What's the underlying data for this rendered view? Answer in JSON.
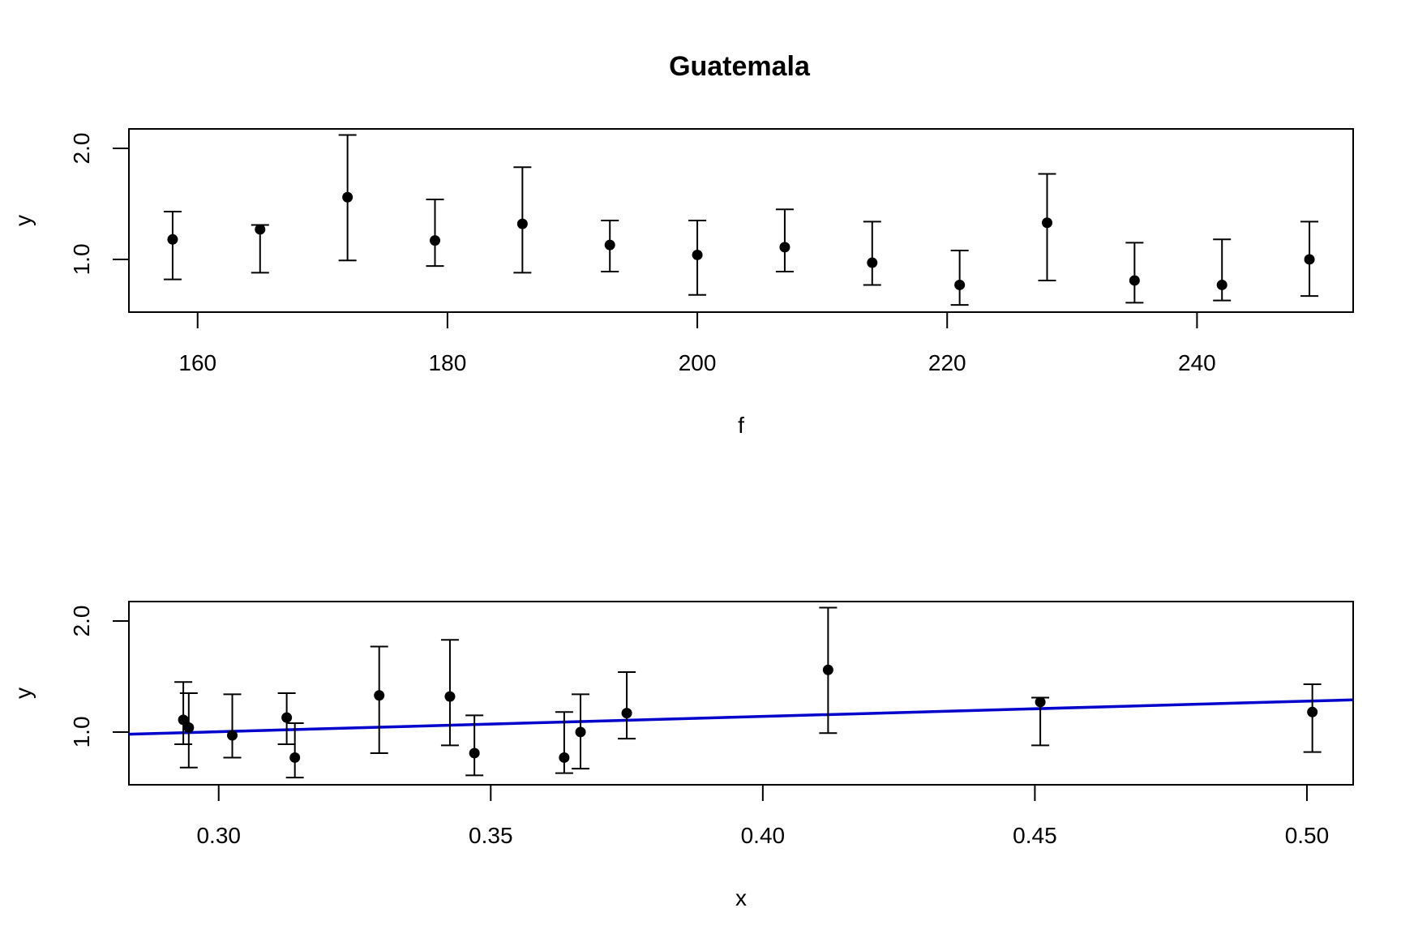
{
  "title": "Guatemala",
  "chart_data": [
    {
      "type": "scatter",
      "title": "Guatemala",
      "xlabel": "f",
      "ylabel": "y",
      "xlim": [
        154.5,
        252.5
      ],
      "ylim": [
        0.525,
        2.175
      ],
      "x_ticks": [
        160,
        180,
        200,
        220,
        240
      ],
      "x_tick_labels": [
        "160",
        "180",
        "200",
        "220",
        "240"
      ],
      "y_ticks": [
        1.0,
        2.0
      ],
      "y_tick_labels": [
        "1.0",
        "2.0"
      ],
      "grid": false,
      "error_bars": true,
      "points": [
        {
          "x": 158,
          "y": 1.18,
          "lo": 0.82,
          "hi": 1.43
        },
        {
          "x": 165,
          "y": 1.27,
          "lo": 0.88,
          "hi": 1.31
        },
        {
          "x": 172,
          "y": 1.56,
          "lo": 0.99,
          "hi": 2.12
        },
        {
          "x": 179,
          "y": 1.17,
          "lo": 0.94,
          "hi": 1.54
        },
        {
          "x": 186,
          "y": 1.32,
          "lo": 0.88,
          "hi": 1.83
        },
        {
          "x": 193,
          "y": 1.13,
          "lo": 0.89,
          "hi": 1.35
        },
        {
          "x": 200,
          "y": 1.04,
          "lo": 0.68,
          "hi": 1.35
        },
        {
          "x": 207,
          "y": 1.11,
          "lo": 0.89,
          "hi": 1.45
        },
        {
          "x": 214,
          "y": 0.97,
          "lo": 0.77,
          "hi": 1.34
        },
        {
          "x": 221,
          "y": 0.77,
          "lo": 0.59,
          "hi": 1.08
        },
        {
          "x": 228,
          "y": 1.33,
          "lo": 0.81,
          "hi": 1.77
        },
        {
          "x": 235,
          "y": 0.81,
          "lo": 0.61,
          "hi": 1.15
        },
        {
          "x": 242,
          "y": 0.77,
          "lo": 0.63,
          "hi": 1.18
        },
        {
          "x": 249,
          "y": 1.0,
          "lo": 0.67,
          "hi": 1.34
        }
      ]
    },
    {
      "type": "scatter",
      "xlabel": "x",
      "ylabel": "y",
      "xlim": [
        0.2835,
        0.5085
      ],
      "ylim": [
        0.525,
        2.175
      ],
      "x_ticks": [
        0.3,
        0.35,
        0.4,
        0.45,
        0.5
      ],
      "x_tick_labels": [
        "0.30",
        "0.35",
        "0.40",
        "0.45",
        "0.50"
      ],
      "y_ticks": [
        1.0,
        2.0
      ],
      "y_tick_labels": [
        "1.0",
        "2.0"
      ],
      "grid": false,
      "error_bars": true,
      "fit_line": {
        "color": "#0000cc",
        "x": [
          0.2835,
          0.5085
        ],
        "y": [
          0.98,
          1.29
        ]
      },
      "points": [
        {
          "x": 0.2935,
          "y": 1.11,
          "lo": 0.89,
          "hi": 1.45
        },
        {
          "x": 0.2945,
          "y": 1.04,
          "lo": 0.68,
          "hi": 1.35
        },
        {
          "x": 0.3025,
          "y": 0.97,
          "lo": 0.77,
          "hi": 1.34
        },
        {
          "x": 0.3125,
          "y": 1.13,
          "lo": 0.89,
          "hi": 1.35
        },
        {
          "x": 0.314,
          "y": 0.77,
          "lo": 0.59,
          "hi": 1.08
        },
        {
          "x": 0.3295,
          "y": 1.33,
          "lo": 0.81,
          "hi": 1.77
        },
        {
          "x": 0.3425,
          "y": 1.32,
          "lo": 0.88,
          "hi": 1.83
        },
        {
          "x": 0.347,
          "y": 0.81,
          "lo": 0.61,
          "hi": 1.15
        },
        {
          "x": 0.3635,
          "y": 0.77,
          "lo": 0.63,
          "hi": 1.18
        },
        {
          "x": 0.3665,
          "y": 1.0,
          "lo": 0.67,
          "hi": 1.34
        },
        {
          "x": 0.375,
          "y": 1.17,
          "lo": 0.94,
          "hi": 1.54
        },
        {
          "x": 0.412,
          "y": 1.56,
          "lo": 0.99,
          "hi": 2.12
        },
        {
          "x": 0.451,
          "y": 1.27,
          "lo": 0.88,
          "hi": 1.31
        },
        {
          "x": 0.501,
          "y": 1.18,
          "lo": 0.82,
          "hi": 1.43
        }
      ]
    }
  ]
}
